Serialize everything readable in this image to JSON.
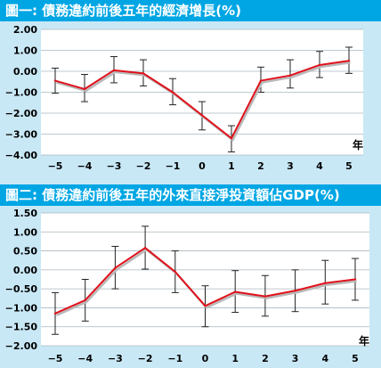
{
  "chart_data": [
    {
      "type": "line",
      "title": "圖一: 債務違約前後五年的經濟增長(%)",
      "x": [
        -5,
        -4,
        -3,
        -2,
        -1,
        0,
        1,
        2,
        3,
        4,
        5
      ],
      "x_tick_labels": [
        "−5",
        "−4",
        "−3",
        "−2",
        "−1",
        "0",
        "1",
        "2",
        "3",
        "4",
        "5"
      ],
      "xlabel": "年",
      "ylabel": "",
      "ylim": [
        -4,
        2
      ],
      "y_ticks": [
        2,
        1,
        0,
        -1,
        -2,
        -3,
        -4
      ],
      "y_tick_labels": [
        "2.00",
        "1.00",
        "0.00",
        "−1.00",
        "−2.00",
        "−3.00",
        "−4.00"
      ],
      "series": [
        {
          "values": [
            -0.45,
            -0.85,
            0.05,
            -0.1,
            -1.0,
            -2.1,
            -3.2,
            -0.45,
            -0.2,
            0.3,
            0.5
          ],
          "error_upper": [
            0.15,
            -0.15,
            0.7,
            0.55,
            -0.35,
            -1.45,
            -2.6,
            0.2,
            0.55,
            0.95,
            1.15
          ],
          "error_lower": [
            -1.05,
            -1.45,
            -0.55,
            -0.7,
            -1.6,
            -2.8,
            -3.85,
            -1.0,
            -0.8,
            -0.3,
            -0.1
          ],
          "color": "#e0111b"
        }
      ],
      "grid": true,
      "legend": "none"
    },
    {
      "type": "line",
      "title": "圖二: 債務違約前後五年的外來直接淨投資額佔GDP(%)",
      "x": [
        -5,
        -4,
        -3,
        -2,
        -1,
        0,
        1,
        2,
        3,
        4,
        5
      ],
      "x_tick_labels": [
        "−5",
        "−4",
        "−3",
        "−2",
        "−1",
        "0",
        "1",
        "2",
        "3",
        "4",
        "5"
      ],
      "xlabel": "年",
      "ylabel": "",
      "ylim": [
        -2,
        1.5
      ],
      "y_ticks": [
        1.5,
        1.0,
        0.5,
        0.0,
        -0.5,
        -1.0,
        -1.5,
        -2.0
      ],
      "y_tick_labels": [
        "1.50",
        "1.00",
        "0.50",
        "0.00",
        "−0.50",
        "−1.00",
        "−1.50",
        "−2.00"
      ],
      "series": [
        {
          "values": [
            -1.15,
            -0.8,
            0.05,
            0.58,
            -0.05,
            -0.95,
            -0.58,
            -0.7,
            -0.55,
            -0.35,
            -0.25
          ],
          "error_upper": [
            -0.6,
            -0.25,
            0.62,
            1.15,
            0.5,
            -0.42,
            -0.02,
            -0.15,
            0.0,
            0.25,
            0.3
          ],
          "error_lower": [
            -1.7,
            -1.35,
            -0.5,
            0.02,
            -0.6,
            -1.5,
            -1.12,
            -1.22,
            -1.1,
            -0.9,
            -0.8
          ],
          "color": "#e0111b"
        }
      ],
      "grid": true,
      "legend": "none"
    }
  ]
}
